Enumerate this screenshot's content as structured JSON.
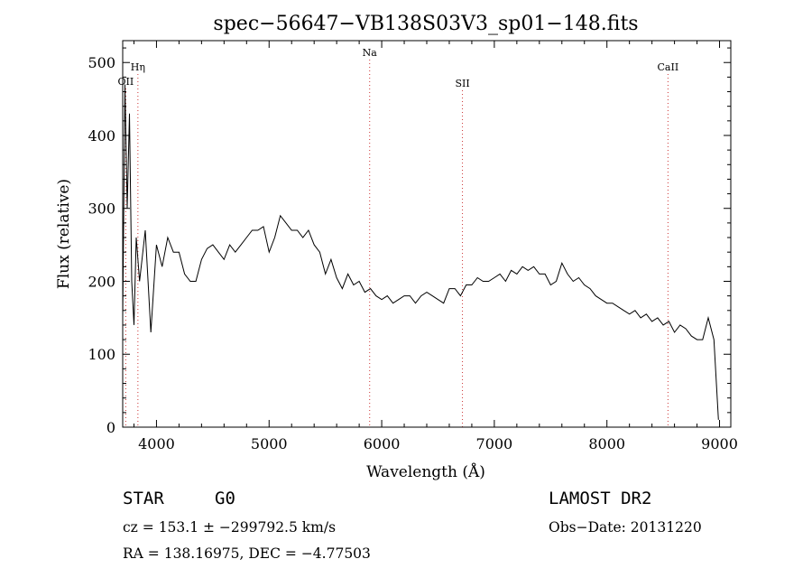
{
  "chart_data": {
    "type": "line",
    "title": "spec−56647−VB138S03V3_sp01−148.fits",
    "xlabel": "Wavelength (Å)",
    "ylabel": "Flux (relative)",
    "xlim": [
      3700,
      9100
    ],
    "ylim": [
      0,
      530
    ],
    "xticks": [
      4000,
      5000,
      6000,
      7000,
      8000,
      9000
    ],
    "yticks": [
      0,
      100,
      200,
      300,
      400,
      500
    ],
    "grid": false,
    "series": [
      {
        "x": [
          3700,
          3720,
          3740,
          3760,
          3780,
          3800,
          3820,
          3850,
          3900,
          3950,
          4000,
          4050,
          4100,
          4150,
          4200,
          4250,
          4300,
          4350,
          4400,
          4450,
          4500,
          4550,
          4600,
          4650,
          4700,
          4750,
          4800,
          4850,
          4900,
          4950,
          5000,
          5050,
          5100,
          5150,
          5200,
          5250,
          5300,
          5350,
          5400,
          5450,
          5500,
          5550,
          5600,
          5650,
          5700,
          5750,
          5800,
          5850,
          5900,
          5950,
          6000,
          6050,
          6100,
          6150,
          6200,
          6250,
          6300,
          6350,
          6400,
          6450,
          6500,
          6550,
          6600,
          6650,
          6700,
          6750,
          6800,
          6850,
          6900,
          6950,
          7000,
          7050,
          7100,
          7150,
          7200,
          7250,
          7300,
          7350,
          7400,
          7450,
          7500,
          7550,
          7600,
          7650,
          7700,
          7750,
          7800,
          7850,
          7900,
          7950,
          8000,
          8050,
          8100,
          8150,
          8200,
          8250,
          8300,
          8350,
          8400,
          8450,
          8500,
          8550,
          8600,
          8650,
          8700,
          8750,
          8800,
          8850,
          8900,
          8950,
          8990
        ],
        "y": [
          150,
          470,
          300,
          430,
          200,
          140,
          260,
          200,
          270,
          130,
          250,
          220,
          260,
          240,
          240,
          210,
          200,
          200,
          230,
          245,
          250,
          240,
          230,
          250,
          240,
          250,
          260,
          270,
          270,
          275,
          240,
          260,
          290,
          280,
          270,
          270,
          260,
          270,
          250,
          240,
          210,
          230,
          205,
          190,
          210,
          195,
          200,
          185,
          190,
          180,
          175,
          180,
          170,
          175,
          180,
          180,
          170,
          180,
          185,
          180,
          175,
          170,
          190,
          190,
          180,
          195,
          195,
          205,
          200,
          200,
          205,
          210,
          200,
          215,
          210,
          220,
          215,
          220,
          210,
          210,
          195,
          200,
          225,
          210,
          200,
          205,
          195,
          190,
          180,
          175,
          170,
          170,
          165,
          160,
          155,
          160,
          150,
          155,
          145,
          150,
          140,
          145,
          130,
          140,
          135,
          125,
          120,
          120,
          150,
          120,
          10
        ]
      }
    ],
    "annotations": [
      {
        "label": "OII",
        "x": 3727
      },
      {
        "label": "Hη",
        "x": 3835
      },
      {
        "label": "Na",
        "x": 5893
      },
      {
        "label": "SII",
        "x": 6717
      },
      {
        "label": "CaII",
        "x": 8542
      }
    ]
  },
  "info": {
    "object_class": "STAR",
    "subclass": "G0",
    "survey": "LAMOST DR2",
    "cz_line": "cz = 153.1 ± −299792.5 km/s",
    "obs_date_line": "Obs−Date: 20131220",
    "coords_line": "RA = 138.16975, DEC =  −4.77503"
  }
}
